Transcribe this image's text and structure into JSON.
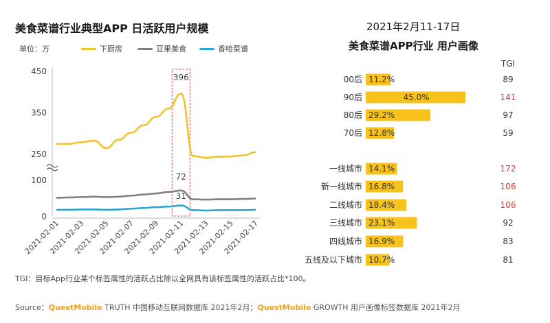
{
  "left_title": "美食菜谱行业典型APP 日活跃用户规模",
  "right_title_date": "2021年2月11-17日",
  "right_title": "美食菜谱APP行业 用户画像",
  "unit_label": "单位：万",
  "note": "TGI：目标App行业某个标签属性的活跃占比除以全网具有该标签属性的活跃占比*100。",
  "source": {
    "prefix": "Source：",
    "qm1": "QuestMobile",
    "text1": " TRUTH 中国移动互联网数据库 2021年2月；",
    "qm2": "QuestMobile",
    "text2": " GROWTH 用户画像标签数据库 2021年2月"
  },
  "colors": {
    "xiachufang": "#f2c12e",
    "douguo": "#7f7f7f",
    "xianghacaipu": "#2aa6d2",
    "bar": "#f6c21b",
    "highlight_box": "#d9534f",
    "tgi_red": "#d03a3a"
  },
  "chart_data": [
    {
      "type": "line",
      "title": "美食菜谱行业典型APP 日活跃用户规模",
      "ylabel": "单位：万",
      "y_ticks": [
        "450",
        "350",
        "250",
        "100",
        "0"
      ],
      "y_axis_break": true,
      "x_ticks": [
        "2021-02-01",
        "2021-02-03",
        "2021-02-05",
        "2021-02-07",
        "2021-02-09",
        "2021-02-11",
        "2021-02-13",
        "2021-02-15",
        "2021-02-17"
      ],
      "x": [
        "2021-02-01",
        "2021-02-02",
        "2021-02-03",
        "2021-02-04",
        "2021-02-05",
        "2021-02-06",
        "2021-02-07",
        "2021-02-08",
        "2021-02-09",
        "2021-02-10",
        "2021-02-11",
        "2021-02-12",
        "2021-02-13",
        "2021-02-14",
        "2021-02-15",
        "2021-02-16",
        "2021-02-17"
      ],
      "series": [
        {
          "name": "下厨房",
          "color_key": "xiachufang",
          "values": [
            275,
            275,
            279,
            283,
            265,
            285,
            302,
            320,
            340,
            360,
            396,
            240,
            230,
            236,
            238,
            244,
            255
          ]
        },
        {
          "name": "豆果美食",
          "color_key": "douguo",
          "values": [
            52,
            53,
            54,
            55,
            54,
            55,
            58,
            61,
            64,
            68,
            72,
            48,
            47,
            48,
            48,
            49,
            50
          ]
        },
        {
          "name": "香哈菜谱",
          "color_key": "xianghacaipu",
          "values": [
            19,
            19,
            20,
            20,
            19,
            20,
            22,
            24,
            26,
            28,
            31,
            18,
            17,
            18,
            18,
            18,
            19
          ]
        }
      ],
      "annotations": [
        {
          "x": "2021-02-11",
          "value": "396"
        },
        {
          "x": "2021-02-11",
          "value": "72"
        },
        {
          "x": "2021-02-11",
          "value": "31"
        }
      ],
      "highlight": {
        "x": "2021-02-11"
      },
      "legend": "top"
    },
    {
      "type": "bar",
      "orientation": "horizontal",
      "title": "美食菜谱APP行业 用户画像",
      "tgi_header": "TGI",
      "groups": [
        {
          "categories": [
            "00后",
            "90后",
            "80后",
            "70后"
          ],
          "values": [
            11.2,
            45.0,
            29.2,
            12.8
          ],
          "labels": [
            "11.2%",
            "45.0%",
            "29.2%",
            "12.8%"
          ],
          "tgi": [
            "89",
            "141",
            "97",
            "59"
          ],
          "tgi_highlight": [
            false,
            true,
            false,
            false
          ]
        },
        {
          "categories": [
            "一线城市",
            "新一线城市",
            "二线城市",
            "三线城市",
            "四线城市",
            "五线及以下城市"
          ],
          "values": [
            14.1,
            16.8,
            18.4,
            23.1,
            16.9,
            10.7
          ],
          "labels": [
            "14.1%",
            "16.8%",
            "18.4%",
            "23.1%",
            "16.9%",
            "10.7%"
          ],
          "tgi": [
            "172",
            "106",
            "106",
            "92",
            "83",
            "81"
          ],
          "tgi_highlight": [
            true,
            true,
            true,
            false,
            false,
            false
          ]
        }
      ]
    }
  ]
}
